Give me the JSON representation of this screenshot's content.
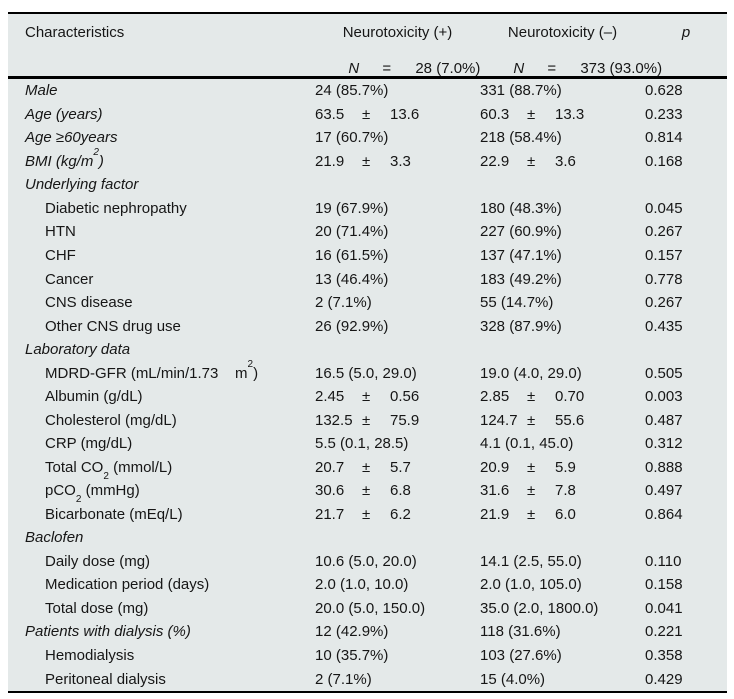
{
  "colors": {
    "table_background": "#e4e9e9",
    "text": "#161616",
    "rule": "#000000"
  },
  "table": {
    "pm_symbol": "±",
    "columns": {
      "characteristics": "Characteristics",
      "pos_group": "Neurotoxicity (+)",
      "neg_group": "Neurotoxicity (–)",
      "p": "p"
    },
    "subheader": {
      "pos": {
        "n_label": "N",
        "eq": "=",
        "value": "28 (7.0%)"
      },
      "neg": {
        "n_label": "N",
        "eq": "=",
        "value": "373 (93.0%)"
      }
    },
    "rows": [
      {
        "label": "Male",
        "indent": false,
        "pos": {
          "kind": "text",
          "value": "24 (85.7%)"
        },
        "neg": {
          "kind": "text",
          "value": "331 (88.7%)"
        },
        "p": "0.628"
      },
      {
        "label": "Age (years)",
        "indent": false,
        "pos": {
          "kind": "pm",
          "mean": "63.5",
          "sd": "13.6"
        },
        "neg": {
          "kind": "pm",
          "mean": "60.3",
          "sd": "13.3"
        },
        "p": "0.233"
      },
      {
        "label": "Age ≥60years",
        "indent": false,
        "pos": {
          "kind": "text",
          "value": "17 (60.7%)"
        },
        "neg": {
          "kind": "text",
          "value": "218 (58.4%)"
        },
        "p": "0.814"
      },
      {
        "label": [
          {
            "t": "BMI (kg/m"
          },
          {
            "t": "2",
            "sup": true
          },
          {
            "t": ")"
          }
        ],
        "indent": false,
        "pos": {
          "kind": "pm",
          "mean": "21.9",
          "sd": "3.3"
        },
        "neg": {
          "kind": "pm",
          "mean": "22.9",
          "sd": "3.6"
        },
        "p": "0.168"
      },
      {
        "label": "Underlying factor",
        "indent": false,
        "section": true
      },
      {
        "label": "Diabetic nephropathy",
        "indent": true,
        "pos": {
          "kind": "text",
          "value": "19 (67.9%)"
        },
        "neg": {
          "kind": "text",
          "value": "180 (48.3%)"
        },
        "p": "0.045"
      },
      {
        "label": "HTN",
        "indent": true,
        "pos": {
          "kind": "text",
          "value": "20 (71.4%)"
        },
        "neg": {
          "kind": "text",
          "value": "227 (60.9%)"
        },
        "p": "0.267"
      },
      {
        "label": "CHF",
        "indent": true,
        "pos": {
          "kind": "text",
          "value": "16 (61.5%)"
        },
        "neg": {
          "kind": "text",
          "value": "137 (47.1%)"
        },
        "p": "0.157"
      },
      {
        "label": "Cancer",
        "indent": true,
        "pos": {
          "kind": "text",
          "value": "13 (46.4%)"
        },
        "neg": {
          "kind": "text",
          "value": "183 (49.2%)"
        },
        "p": "0.778"
      },
      {
        "label": "CNS disease",
        "indent": true,
        "pos": {
          "kind": "text",
          "value": "2 (7.1%)"
        },
        "neg": {
          "kind": "text",
          "value": "55 (14.7%)"
        },
        "p": "0.267"
      },
      {
        "label": "Other CNS drug use",
        "indent": true,
        "pos": {
          "kind": "text",
          "value": "26 (92.9%)"
        },
        "neg": {
          "kind": "text",
          "value": "328 (87.9%)"
        },
        "p": "0.435"
      },
      {
        "label": "Laboratory data",
        "indent": false,
        "section": true
      },
      {
        "label": [
          {
            "t": "MDRD-GFR (mL/min/1.73    m"
          },
          {
            "t": "2",
            "sup": true
          },
          {
            "t": ")"
          }
        ],
        "indent": true,
        "pos": {
          "kind": "text",
          "value": "16.5 (5.0, 29.0)"
        },
        "neg": {
          "kind": "text",
          "value": "19.0 (4.0, 29.0)"
        },
        "p": "0.505"
      },
      {
        "label": "Albumin (g/dL)",
        "indent": true,
        "pos": {
          "kind": "pm",
          "mean": "2.45",
          "sd": "0.56"
        },
        "neg": {
          "kind": "pm",
          "mean": "2.85",
          "sd": "0.70"
        },
        "p": "0.003"
      },
      {
        "label": "Cholesterol (mg/dL)",
        "indent": true,
        "pos": {
          "kind": "pm",
          "mean": "132.5",
          "sd": "75.9"
        },
        "neg": {
          "kind": "pm",
          "mean": "124.7",
          "sd": "55.6"
        },
        "p": "0.487"
      },
      {
        "label": "CRP (mg/dL)",
        "indent": true,
        "pos": {
          "kind": "text",
          "value": "5.5 (0.1, 28.5)"
        },
        "neg": {
          "kind": "text",
          "value": "4.1 (0.1, 45.0)"
        },
        "p": "0.312"
      },
      {
        "label": [
          {
            "t": "Total CO"
          },
          {
            "t": "2",
            "sub": true
          },
          {
            "t": " (mmol/L)"
          }
        ],
        "indent": true,
        "pos": {
          "kind": "pm",
          "mean": "20.7",
          "sd": "5.7"
        },
        "neg": {
          "kind": "pm",
          "mean": "20.9",
          "sd": "5.9"
        },
        "p": "0.888"
      },
      {
        "label": [
          {
            "t": "pCO"
          },
          {
            "t": "2",
            "sub": true
          },
          {
            "t": " (mmHg)"
          }
        ],
        "indent": true,
        "pos": {
          "kind": "pm",
          "mean": "30.6",
          "sd": "6.8"
        },
        "neg": {
          "kind": "pm",
          "mean": "31.6",
          "sd": "7.8"
        },
        "p": "0.497"
      },
      {
        "label": "Bicarbonate (mEq/L)",
        "indent": true,
        "pos": {
          "kind": "pm",
          "mean": "21.7",
          "sd": "6.2"
        },
        "neg": {
          "kind": "pm",
          "mean": "21.9",
          "sd": "6.0"
        },
        "p": "0.864"
      },
      {
        "label": "Baclofen",
        "indent": false,
        "section": true
      },
      {
        "label": "Daily dose (mg)",
        "indent": true,
        "pos": {
          "kind": "text",
          "value": "10.6 (5.0, 20.0)"
        },
        "neg": {
          "kind": "text",
          "value": "14.1 (2.5, 55.0)"
        },
        "p": "0.110"
      },
      {
        "label": "Medication period (days)",
        "indent": true,
        "pos": {
          "kind": "text",
          "value": "2.0 (1.0, 10.0)"
        },
        "neg": {
          "kind": "text",
          "value": "2.0 (1.0, 105.0)"
        },
        "p": "0.158"
      },
      {
        "label": "Total dose (mg)",
        "indent": true,
        "pos": {
          "kind": "text",
          "value": "20.0 (5.0, 150.0)"
        },
        "neg": {
          "kind": "text",
          "value": "35.0 (2.0, 1800.0)"
        },
        "p": "0.041"
      },
      {
        "label": "Patients with dialysis (%)",
        "indent": false,
        "pos": {
          "kind": "text",
          "value": "12 (42.9%)"
        },
        "neg": {
          "kind": "text",
          "value": "118 (31.6%)"
        },
        "p": "0.221"
      },
      {
        "label": "Hemodialysis",
        "indent": true,
        "pos": {
          "kind": "text",
          "value": "10 (35.7%)"
        },
        "neg": {
          "kind": "text",
          "value": "103 (27.6%)"
        },
        "p": "0.358"
      },
      {
        "label": "Peritoneal dialysis",
        "indent": true,
        "pos": {
          "kind": "text",
          "value": "2 (7.1%)"
        },
        "neg": {
          "kind": "text",
          "value": "15 (4.0%)"
        },
        "p": "0.429"
      }
    ]
  }
}
